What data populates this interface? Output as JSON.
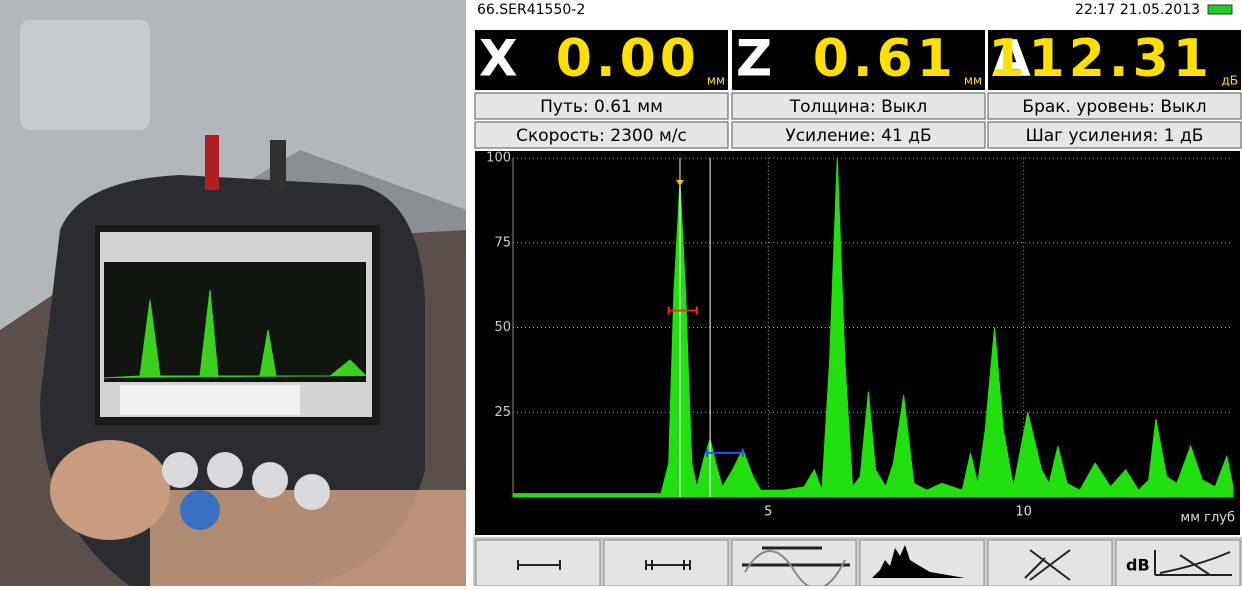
{
  "header": {
    "file": "66.SER41550-2",
    "datetime": "22:17 21.05.2013"
  },
  "readouts": [
    {
      "letter": "X",
      "value": "0.00",
      "unit": "мм"
    },
    {
      "letter": "Z",
      "value": "0.61",
      "unit": "мм"
    },
    {
      "letter": "A",
      "value": "112.31",
      "unit": "дБ"
    }
  ],
  "info": [
    [
      "Путь: 0.61 мм",
      "Толщина: Выкл",
      "Брак. уровень: Выкл"
    ],
    [
      "Скорость: 2300 м/с",
      "Усиление: 41 дБ",
      "Шаг усиления: 1 дБ"
    ]
  ],
  "chart_data": {
    "type": "area",
    "x_label": "мм глуб",
    "color": "#22e010",
    "grid": true,
    "xlim": [
      0,
      14.1
    ],
    "ylim": [
      0,
      100
    ],
    "xticks": [
      5,
      10
    ],
    "yticks": [
      25,
      50,
      75,
      100
    ],
    "x": [
      0,
      1,
      2,
      2.9,
      3.05,
      3.15,
      3.27,
      3.38,
      3.5,
      3.6,
      3.75,
      3.86,
      3.97,
      4.1,
      4.3,
      4.5,
      4.7,
      4.85,
      5.3,
      5.7,
      5.9,
      6.05,
      6.2,
      6.35,
      6.5,
      6.65,
      6.8,
      6.96,
      7.1,
      7.3,
      7.45,
      7.65,
      7.85,
      8.1,
      8.4,
      8.8,
      8.96,
      9.1,
      9.25,
      9.43,
      9.6,
      9.8,
      10.08,
      10.35,
      10.5,
      10.67,
      10.85,
      11.1,
      11.4,
      11.7,
      12.0,
      12.25,
      12.45,
      12.59,
      12.8,
      13.0,
      13.27,
      13.5,
      13.75,
      13.98,
      14.1
    ],
    "values": [
      1,
      1,
      1,
      1,
      10,
      60,
      93,
      60,
      10,
      3,
      12,
      17,
      10,
      3,
      8,
      14,
      6,
      2,
      2,
      3,
      8,
      2,
      40,
      100,
      40,
      3,
      6,
      31,
      8,
      3,
      10,
      30,
      4,
      2,
      4,
      2,
      13,
      4,
      20,
      50,
      20,
      3,
      25,
      8,
      4,
      15,
      4,
      2,
      10,
      3,
      8,
      2,
      5,
      23,
      6,
      4,
      15,
      5,
      3,
      12,
      3
    ],
    "cursors": [
      3.27,
      3.86
    ],
    "gates": [
      {
        "start": 3.05,
        "end": 3.6,
        "level": 55,
        "color": "#ff2020"
      },
      {
        "start": 3.8,
        "end": 4.5,
        "level": 13,
        "color": "#2050ff"
      }
    ]
  }
}
